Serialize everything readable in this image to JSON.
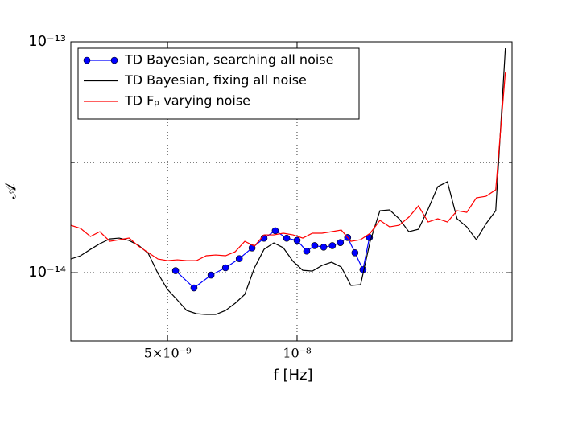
{
  "chart_data": {
    "type": "line",
    "xlabel": "f [Hz]",
    "ylabel": "𝒜",
    "xscale": "log",
    "yscale": "log",
    "xlim": [
      2.98e-09,
      3.16e-08
    ],
    "ylim": [
      5.06e-15,
      1e-13
    ],
    "xticks": [
      {
        "value": 5e-09,
        "label": "5×10⁻⁹"
      },
      {
        "value": 1e-08,
        "label": "10⁻⁸"
      }
    ],
    "yticks": [
      {
        "value": 1e-14,
        "label": "10⁻¹⁴"
      },
      {
        "value": 1e-13,
        "label": "10⁻¹³"
      }
    ],
    "y_minor_grid": [
      3e-14
    ],
    "grid": true,
    "legend": "upper left",
    "series": [
      {
        "name": "TD Bayesian, searching all noise",
        "color": "#0000ff",
        "marker": "o",
        "x": [
          5.22e-09,
          5.76e-09,
          6.31e-09,
          6.82e-09,
          7.34e-09,
          7.86e-09,
          8.38e-09,
          8.9e-09,
          9.46e-09,
          1e-08,
          1.053e-08,
          1.099e-08,
          1.153e-08,
          1.208e-08,
          1.261e-08,
          1.311e-08,
          1.363e-08,
          1.423e-08,
          1.473e-08
        ],
        "values": [
          1.02e-14,
          8.59e-15,
          9.76e-15,
          1.05e-14,
          1.15e-14,
          1.28e-14,
          1.41e-14,
          1.52e-14,
          1.41e-14,
          1.38e-14,
          1.24e-14,
          1.31e-14,
          1.29e-14,
          1.31e-14,
          1.35e-14,
          1.42e-14,
          1.22e-14,
          1.03e-14,
          1.42e-14
        ]
      },
      {
        "name": "TD Bayesian, fixing all noise",
        "color": "#000000",
        "x": [
          2.98e-09,
          3.14e-09,
          3.31e-09,
          3.48e-09,
          3.67e-09,
          3.86e-09,
          4.07e-09,
          4.28e-09,
          4.51e-09,
          4.75e-09,
          5e-09,
          5.27e-09,
          5.54e-09,
          5.84e-09,
          6.15e-09,
          6.47e-09,
          6.82e-09,
          7.18e-09,
          7.56e-09,
          7.96e-09,
          8.38e-09,
          8.83e-09,
          9.29e-09,
          9.79e-09,
          1.031e-08,
          1.085e-08,
          1.143e-08,
          1.203e-08,
          1.267e-08,
          1.334e-08,
          1.405e-08,
          1.479e-08,
          1.558e-08,
          1.641e-08,
          1.727e-08,
          1.819e-08,
          1.915e-08,
          2.017e-08,
          2.124e-08,
          2.236e-08,
          2.355e-08,
          2.48e-08,
          2.611e-08,
          2.75e-08,
          2.896e-08,
          3.049e-08
        ],
        "values": [
          1.146e-14,
          1.184e-14,
          1.262e-14,
          1.335e-14,
          1.4e-14,
          1.412e-14,
          1.378e-14,
          1.314e-14,
          1.212e-14,
          9.92e-15,
          8.45e-15,
          7.61e-15,
          6.86e-15,
          6.64e-15,
          6.59e-15,
          6.59e-15,
          6.86e-15,
          7.37e-15,
          8.05e-15,
          1.049e-14,
          1.262e-14,
          1.346e-14,
          1.282e-14,
          1.119e-14,
          1.024e-14,
          1.016e-14,
          1.075e-14,
          1.11e-14,
          1.058e-14,
          8.8e-15,
          8.87e-15,
          1.367e-14,
          1.855e-14,
          1.87e-14,
          1.712e-14,
          1.505e-14,
          1.542e-14,
          1.885e-14,
          2.359e-14,
          2.476e-14,
          1.712e-14,
          1.58e-14,
          1.389e-14,
          1.631e-14,
          1.855e-14,
          9.38e-14
        ]
      },
      {
        "name": "TD Fₚ varying noise",
        "color": "#ff0000",
        "x": [
          2.98e-09,
          3.14e-09,
          3.31e-09,
          3.48e-09,
          3.67e-09,
          3.86e-09,
          4.07e-09,
          4.28e-09,
          4.51e-09,
          4.75e-09,
          5e-09,
          5.27e-09,
          5.54e-09,
          5.84e-09,
          6.15e-09,
          6.47e-09,
          6.82e-09,
          7.18e-09,
          7.56e-09,
          7.96e-09,
          8.38e-09,
          8.83e-09,
          9.29e-09,
          9.79e-09,
          1.031e-08,
          1.085e-08,
          1.143e-08,
          1.203e-08,
          1.267e-08,
          1.334e-08,
          1.405e-08,
          1.479e-08,
          1.558e-08,
          1.641e-08,
          1.727e-08,
          1.819e-08,
          1.915e-08,
          2.017e-08,
          2.124e-08,
          2.236e-08,
          2.355e-08,
          2.48e-08,
          2.611e-08,
          2.75e-08,
          2.896e-08,
          3.049e-08
        ],
        "values": [
          1.605e-14,
          1.555e-14,
          1.435e-14,
          1.505e-14,
          1.367e-14,
          1.389e-14,
          1.412e-14,
          1.303e-14,
          1.222e-14,
          1.146e-14,
          1.128e-14,
          1.137e-14,
          1.128e-14,
          1.128e-14,
          1.184e-14,
          1.193e-14,
          1.184e-14,
          1.232e-14,
          1.367e-14,
          1.303e-14,
          1.458e-14,
          1.458e-14,
          1.482e-14,
          1.458e-14,
          1.412e-14,
          1.482e-14,
          1.482e-14,
          1.505e-14,
          1.53e-14,
          1.367e-14,
          1.389e-14,
          1.482e-14,
          1.685e-14,
          1.58e-14,
          1.605e-14,
          1.74e-14,
          1.946e-14,
          1.658e-14,
          1.712e-14,
          1.658e-14,
          1.855e-14,
          1.825e-14,
          2.109e-14,
          2.143e-14,
          2.285e-14,
          7.37e-14
        ]
      }
    ]
  }
}
